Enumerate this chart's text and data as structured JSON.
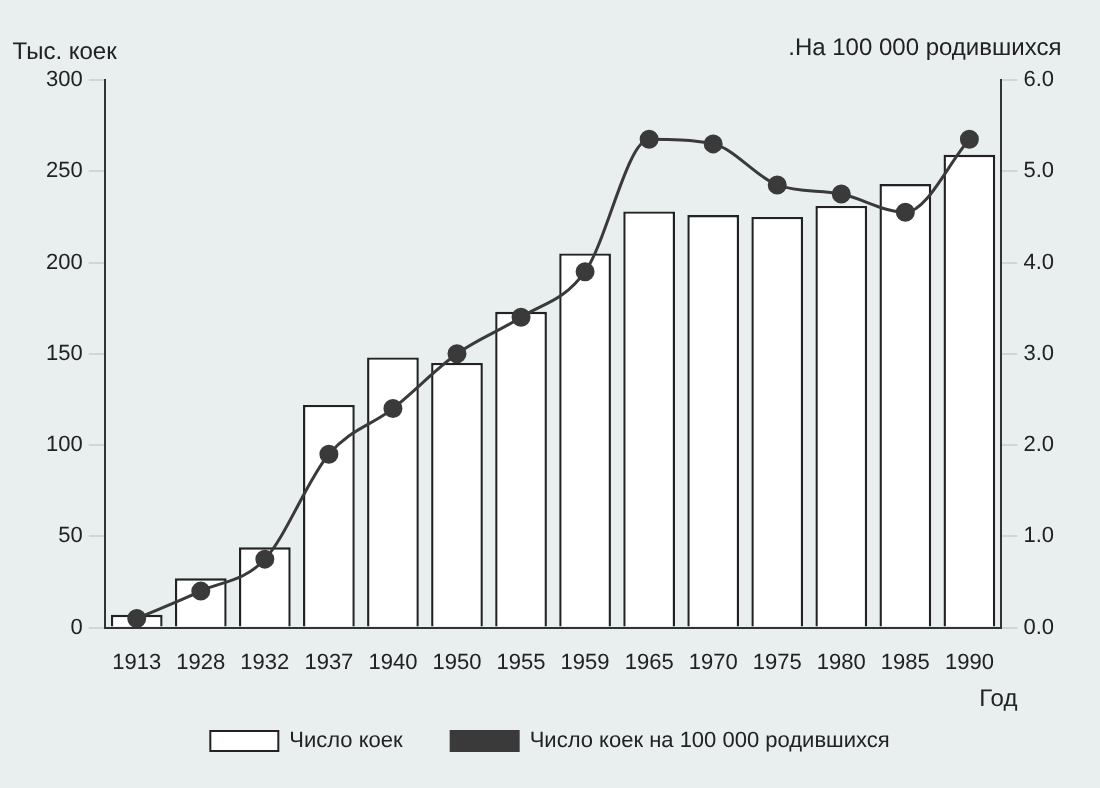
{
  "chart_data": {
    "type": "bar",
    "ylabel": "Тыс. коек",
    "y2label": ".На 100 000 родившихся",
    "xlabel": "Год",
    "categories": [
      "1913",
      "1928",
      "1932",
      "1937",
      "1940",
      "1950",
      "1955",
      "1959",
      "1965",
      "1970",
      "1975",
      "1980",
      "1985",
      "1990"
    ],
    "series": [
      {
        "name": "Число коек",
        "color": "#ffffff",
        "values": [
          7,
          27,
          44,
          122,
          148,
          145,
          173,
          205,
          228,
          226,
          225,
          231,
          243,
          259
        ]
      },
      {
        "name": "Число коек на 100 000 родившихся",
        "type": "line",
        "axis": "y2",
        "color": "#3a3a3a",
        "values": [
          0.1,
          0.4,
          0.75,
          1.9,
          2.4,
          3.0,
          3.4,
          3.9,
          5.35,
          5.3,
          4.85,
          4.75,
          4.55,
          5.35
        ]
      }
    ],
    "ylim": [
      0,
      300
    ],
    "yticks": [
      0,
      50,
      100,
      150,
      200,
      250,
      300
    ],
    "y2lim": [
      0,
      6
    ],
    "y2ticks": [
      {
        "value": 0,
        "label": "0.0"
      },
      {
        "value": 1,
        "label": "1.0"
      },
      {
        "value": 2,
        "label": "2.0"
      },
      {
        "value": 3,
        "label": "3.0"
      },
      {
        "value": 4,
        "label": "4.0"
      },
      {
        "value": 5,
        "label": "5.0"
      },
      {
        "value": 6,
        "label": "6.0"
      }
    ],
    "grid": false,
    "legend": "bottom",
    "marker": "circle",
    "line_style": "solid"
  }
}
